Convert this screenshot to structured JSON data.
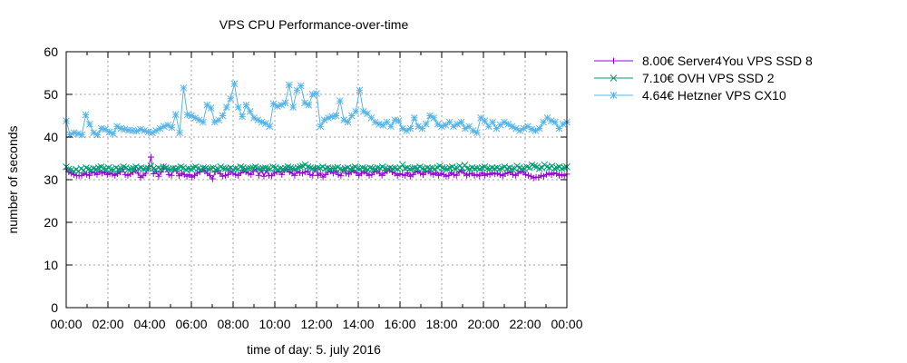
{
  "chart_data": {
    "type": "line",
    "title": "VPS CPU Performance-over-time",
    "xlabel": "time of day: 5. july 2016",
    "ylabel": "number of seconds",
    "xlim": [
      0,
      24
    ],
    "ylim": [
      0,
      60
    ],
    "x_tick_labels": [
      "00:00",
      "02:00",
      "04:00",
      "06:00",
      "08:00",
      "10:00",
      "12:00",
      "14:00",
      "16:00",
      "18:00",
      "20:00",
      "22:00",
      "00:00"
    ],
    "y_ticks": [
      0,
      10,
      20,
      30,
      40,
      50,
      60
    ],
    "grid": true,
    "legend_placement": "outside-right",
    "x_step_hours": 0.25,
    "series": [
      {
        "name": "8.00€ Server4You VPS SSD 8",
        "color": "#9400d3",
        "marker": "plus",
        "values": [
          32.5,
          31.8,
          31.5,
          31.2,
          31.0,
          30.9,
          31.0,
          31.5,
          31.2,
          31.0,
          31.8,
          31.6,
          31.2,
          32.0,
          31.5,
          31.8,
          31.2,
          31.5,
          31.3,
          31.0,
          31.4,
          31.8,
          32.5,
          31.2,
          31.0,
          31.3,
          31.8,
          32.3,
          31.5,
          30.5,
          31.0,
          31.5,
          32.6,
          35.3,
          31.4,
          32.0,
          30.8,
          31.8,
          33.0,
          32.5,
          31.2,
          31.0,
          32.6,
          32.0,
          30.9,
          31.5,
          31.2,
          30.8,
          31.2,
          30.6,
          31.0,
          31.5,
          31.8,
          32.5,
          32.0,
          31.5,
          31.0,
          30.2,
          31.8,
          32.2,
          31.4,
          30.8,
          31.0,
          31.2,
          32.0,
          31.5,
          31.2,
          31.0,
          31.6,
          32.2,
          31.8,
          31.5,
          31.2,
          32.0,
          32.5,
          31.0,
          32.3,
          30.8,
          32.2,
          31.0,
          30.9,
          31.5,
          31.8,
          32.0,
          31.2,
          32.2,
          32.5,
          31.8,
          31.5,
          31.0,
          32.0,
          31.6,
          31.5,
          31.8,
          32.0,
          31.2,
          31.0,
          32.5,
          31.0,
          31.5,
          30.6,
          31.2,
          31.8,
          32.0,
          31.5,
          32.0,
          31.2,
          30.9,
          32.5,
          31.5,
          31.3,
          31.8,
          32.2,
          31.6,
          31.0,
          31.5,
          31.9,
          31.5,
          31.0,
          31.2,
          31.8,
          32.0,
          31.5,
          31.0,
          31.6,
          32.0,
          32.3,
          31.8,
          31.5,
          31.0,
          31.4,
          31.2,
          31.0,
          31.6,
          30.8,
          31.2,
          31.8,
          32.0,
          31.5,
          31.2,
          31.8,
          32.0,
          31.5,
          31.2,
          31.6,
          31.0,
          31.5,
          31.2,
          30.8,
          31.0,
          31.6,
          31.2,
          31.0,
          31.8,
          32.2,
          31.5,
          31.0,
          31.3,
          31.5,
          31.0,
          31.2,
          30.9,
          31.6,
          31.0,
          31.4,
          31.2,
          31.6,
          31.3,
          31.5,
          31.2,
          30.9,
          31.4,
          31.6,
          31.8,
          31.2,
          31.0,
          31.5,
          32.0,
          31.7,
          31.2,
          31.0,
          30.8,
          30.4,
          30.6,
          30.5,
          31.0,
          30.8,
          31.2,
          31.5,
          31.2,
          31.6,
          31.4,
          31.0,
          31.2,
          30.9,
          31.3
        ],
        "_pad": null
      },
      {
        "name": "7.10€ OVH VPS SSD 2",
        "color": "#009e73",
        "marker": "cross",
        "values": [
          33.0,
          32.5,
          32.3,
          32.0,
          32.4,
          32.0,
          32.6,
          32.2,
          32.8,
          32.5,
          32.3,
          32.6,
          32.5,
          32.8,
          33.0,
          32.6,
          32.5,
          32.8,
          32.4,
          32.3,
          32.8,
          32.5,
          32.6,
          33.0,
          32.8,
          32.4,
          32.5,
          32.7,
          33.0,
          32.6,
          32.8,
          32.5,
          32.6,
          32.7,
          33.2,
          32.6,
          32.3,
          32.8,
          32.5,
          33.0,
          32.8,
          32.5,
          32.4,
          32.6,
          32.5,
          32.7,
          33.0,
          32.8,
          32.4,
          32.6,
          32.5,
          32.8,
          33.0,
          32.6,
          32.4,
          32.8,
          32.7,
          32.5,
          32.6,
          32.8,
          32.4,
          32.5,
          33.0,
          32.7,
          32.6,
          32.5,
          32.8,
          32.4,
          32.6,
          32.5,
          33.0,
          32.8,
          32.5,
          32.6,
          32.7,
          32.8,
          33.0,
          32.6,
          32.5,
          32.7,
          32.8,
          32.6,
          32.5,
          33.0,
          32.8,
          32.4,
          32.6,
          32.5,
          32.7,
          33.0,
          32.8,
          32.6,
          32.5,
          32.8,
          33.0,
          33.2,
          33.5,
          33.0,
          32.8,
          32.6,
          32.5,
          32.8,
          32.7,
          33.0,
          32.6,
          32.8,
          32.5,
          32.6,
          32.7,
          32.9,
          32.5,
          32.3,
          32.6,
          32.8,
          32.5,
          32.7,
          33.0,
          32.6,
          32.5,
          32.8,
          32.6,
          32.4,
          32.8,
          32.6,
          32.5,
          32.8,
          32.7,
          33.0,
          32.6,
          32.5,
          32.8,
          32.6,
          32.7,
          32.5,
          32.8,
          33.5,
          32.6,
          32.8,
          32.5,
          32.6,
          32.8,
          32.7,
          33.0,
          32.6,
          32.5,
          32.8,
          32.6,
          32.7,
          32.5,
          32.9,
          33.2,
          32.8,
          32.6,
          32.5,
          32.8,
          33.0,
          32.6,
          32.7,
          33.2,
          32.8,
          33.4,
          32.6,
          32.5,
          32.8,
          32.6,
          32.7,
          32.5,
          32.8,
          33.0,
          32.6,
          32.5,
          32.8,
          32.6,
          32.8,
          32.5,
          32.7,
          33.0,
          32.6,
          32.8,
          32.5,
          32.6,
          33.2,
          32.8,
          32.5,
          32.6,
          33.0,
          32.8,
          33.5,
          33.2,
          33.0,
          32.6,
          32.8,
          33.5,
          33.0,
          32.8,
          33.2,
          32.6,
          32.8,
          33.0,
          32.6,
          32.8,
          33.0
        ],
        "_pad": null
      },
      {
        "name": "4.64€ Hetzner VPS CX10",
        "color": "#56b4e9",
        "marker": "star",
        "values": [
          43.8,
          40.5,
          41.0,
          40.8,
          40.5,
          45.2,
          43.0,
          41.0,
          40.5,
          42.0,
          41.8,
          41.2,
          40.8,
          42.5,
          42.0,
          41.8,
          41.6,
          41.5,
          41.4,
          41.8,
          41.5,
          41.2,
          41.0,
          41.5,
          42.0,
          42.5,
          42.8,
          42.2,
          45.3,
          41.0,
          51.5,
          45.2,
          45.0,
          44.5,
          44.0,
          43.5,
          47.5,
          46.8,
          43.5,
          44.0,
          45.0,
          47.0,
          49.0,
          52.5,
          47.0,
          44.8,
          47.5,
          46.0,
          44.5,
          44.0,
          43.5,
          43.2,
          42.5,
          47.8,
          47.2,
          47.5,
          48.0,
          52.2,
          47.0,
          51.0,
          52.0,
          48.0,
          47.5,
          50.0,
          50.2,
          42.5,
          44.0,
          44.5,
          44.8,
          45.0,
          48.5,
          44.0,
          43.5,
          45.0,
          46.0,
          51.0,
          46.0,
          45.5,
          44.5,
          43.5,
          43.0,
          42.8,
          43.5,
          42.5,
          44.0,
          43.8,
          42.0,
          41.5,
          42.0,
          44.5,
          42.5,
          42.0,
          43.0,
          45.0,
          44.5,
          43.0,
          42.5,
          42.8,
          43.5,
          42.5,
          43.0,
          43.5,
          42.0,
          42.5,
          41.5,
          41.0,
          44.5,
          43.8,
          42.5,
          43.5,
          42.0,
          42.8,
          43.5,
          43.0,
          42.5,
          42.0,
          41.5,
          42.0,
          42.5,
          41.8,
          41.5,
          42.0,
          43.5,
          44.5,
          43.8,
          43.5,
          42.0,
          43.0,
          43.5
        ],
        "_pad": null
      }
    ]
  }
}
